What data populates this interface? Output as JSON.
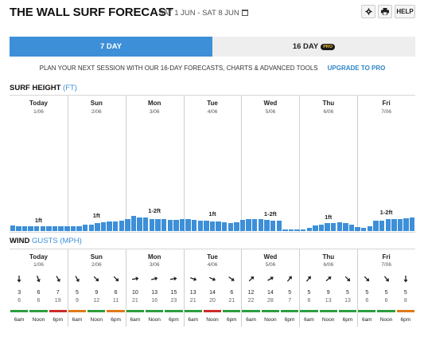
{
  "header": {
    "title": "THE WALL SURF FORECAST",
    "dates": "SAT 1 JUN - SAT 8 JUN",
    "help_label": "HELP"
  },
  "tabs": [
    {
      "label": "7 DAY",
      "active": true
    },
    {
      "label": "16 DAY",
      "badge": "PRO",
      "active": false
    }
  ],
  "promo": {
    "text": "PLAN YOUR NEXT SESSION WITH OUR 16-DAY FORECASTS, CHARTS & ADVANCED TOOLS",
    "link": "UPGRADE TO PRO"
  },
  "surf_height": {
    "title": "SURF HEIGHT",
    "unit": "(FT)"
  },
  "wind": {
    "title": "WIND",
    "unit": "GUSTS (MPH)"
  },
  "days": [
    {
      "name": "Today",
      "date": "1/06",
      "height_label": "1ft"
    },
    {
      "name": "Sun",
      "date": "2/06",
      "height_label": "1ft"
    },
    {
      "name": "Mon",
      "date": "3/06",
      "height_label": "1-2ft"
    },
    {
      "name": "Tue",
      "date": "4/06",
      "height_label": "1ft"
    },
    {
      "name": "Wed",
      "date": "5/06",
      "height_label": "1-2ft"
    },
    {
      "name": "Thu",
      "date": "6/06",
      "height_label": "1ft"
    },
    {
      "name": "Fri",
      "date": "7/06",
      "height_label": "1-2ft"
    }
  ],
  "times": [
    "6am",
    "Noon",
    "6pm"
  ],
  "colors": {
    "bar": "#3d8fd8",
    "good": "#2e9e3e",
    "fair": "#e07a1a",
    "poor": "#cc2b2b"
  },
  "chart_data": {
    "type": "bar",
    "title": "SURF HEIGHT (FT)",
    "ylabel": "FT",
    "ylim": [
      0,
      10
    ],
    "values": [
      0.5,
      0.45,
      0.4,
      0.45,
      0.45,
      0.4,
      0.4,
      0.4,
      0.4,
      0.4,
      0.45,
      0.45,
      0.6,
      0.55,
      0.75,
      0.8,
      0.85,
      0.85,
      0.9,
      1.05,
      1.35,
      1.25,
      1.2,
      1.1,
      1.1,
      1.05,
      1.0,
      1.0,
      1.05,
      1.1,
      1.0,
      0.95,
      0.9,
      0.85,
      0.85,
      0.8,
      0.75,
      0.8,
      1.0,
      1.05,
      1.05,
      1.05,
      1.0,
      0.95,
      0.9,
      0.15,
      0.15,
      0.15,
      0.15,
      0.3,
      0.5,
      0.55,
      0.7,
      0.75,
      0.8,
      0.75,
      0.6,
      0.35,
      0.3,
      0.4,
      0.9,
      0.95,
      1.05,
      1.1,
      1.1,
      1.15,
      1.2
    ]
  },
  "wind_data": [
    {
      "dirs": [
        180,
        160,
        150
      ],
      "speed": [
        3,
        6,
        7
      ],
      "gust": [
        6,
        6,
        19
      ],
      "rating": [
        "good",
        "good",
        "poor"
      ]
    },
    {
      "dirs": [
        150,
        135,
        135
      ],
      "speed": [
        5,
        9,
        6
      ],
      "gust": [
        9,
        12,
        11
      ],
      "rating": [
        "fair",
        "good",
        "fair"
      ]
    },
    {
      "dirs": [
        80,
        75,
        80
      ],
      "speed": [
        10,
        13,
        15
      ],
      "gust": [
        21,
        16,
        23
      ],
      "rating": [
        "good",
        "good",
        "good"
      ]
    },
    {
      "dirs": [
        110,
        115,
        125
      ],
      "speed": [
        13,
        14,
        6
      ],
      "gust": [
        21,
        20,
        21
      ],
      "rating": [
        "good",
        "poor",
        "good"
      ]
    },
    {
      "dirs": [
        45,
        60,
        40
      ],
      "speed": [
        12,
        14,
        5
      ],
      "gust": [
        22,
        28,
        7
      ],
      "rating": [
        "good",
        "good",
        "good"
      ]
    },
    {
      "dirs": [
        40,
        50,
        135
      ],
      "speed": [
        5,
        9,
        5
      ],
      "gust": [
        6,
        13,
        13
      ],
      "rating": [
        "good",
        "good",
        "good"
      ]
    },
    {
      "dirs": [
        135,
        140,
        180
      ],
      "speed": [
        5,
        5,
        5
      ],
      "gust": [
        6,
        6,
        8
      ],
      "rating": [
        "good",
        "good",
        "fair"
      ]
    }
  ]
}
